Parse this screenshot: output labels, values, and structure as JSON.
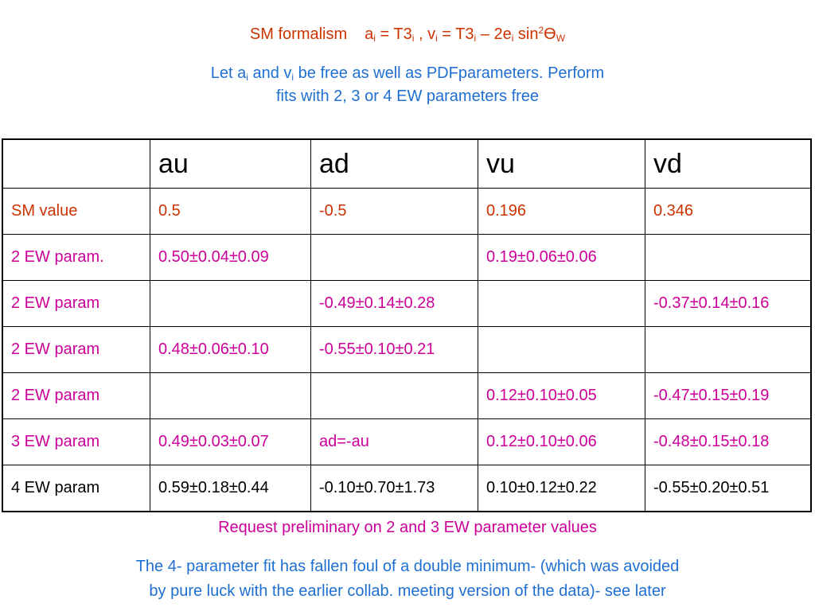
{
  "formalism": {
    "label": "SM formalism",
    "a": "a",
    "i": "i",
    "eq1": " = T3",
    "comma": " , v",
    "eq2": " = T3",
    "minus": " – 2e",
    "sin": " sin",
    "sq": "2",
    "theta": "ϴ",
    "w": "W"
  },
  "intro": {
    "part1": "Let a",
    "i": "i",
    "part2": " and v",
    "part3": " be free as well as PDFparameters. Perform",
    "line2": "fits with 2, 3 or 4 EW parameters free"
  },
  "table": {
    "headers": [
      "",
      "au",
      "ad",
      "vu",
      "vd"
    ],
    "rows": [
      [
        "SM value",
        "0.5",
        "-0.5",
        "0.196",
        "0.346"
      ],
      [
        "2 EW param.",
        "0.50±0.04±0.09",
        "",
        "0.19±0.06±0.06",
        ""
      ],
      [
        "2 EW param",
        "",
        "-0.49±0.14±0.28",
        "",
        "-0.37±0.14±0.16"
      ],
      [
        "2 EW param",
        "0.48±0.06±0.10",
        "-0.55±0.10±0.21",
        "",
        ""
      ],
      [
        "2 EW param",
        "",
        "",
        "0.12±0.10±0.05",
        "-0.47±0.15±0.19"
      ],
      [
        "3 EW param",
        "0.49±0.03±0.07",
        "ad=-au",
        "0.12±0.10±0.06",
        "-0.48±0.15±0.18"
      ],
      [
        "4 EW param",
        "0.59±0.18±0.44",
        "-0.10±0.70±1.73",
        "0.10±0.12±0.22",
        "-0.55±0.20±0.51"
      ]
    ]
  },
  "request": "Request preliminary on 2 and 3 EW parameter values",
  "conclusion": {
    "line1": "The 4- parameter fit has fallen foul of a double minimum- (which was avoided",
    "line2": "by pure luck with the earlier collab. meeting version of the data)- see later"
  },
  "colors": {
    "orange_red": "#cc3300",
    "magenta": "#cc0099",
    "blue": "#1f6fd1",
    "black": "#000000"
  }
}
